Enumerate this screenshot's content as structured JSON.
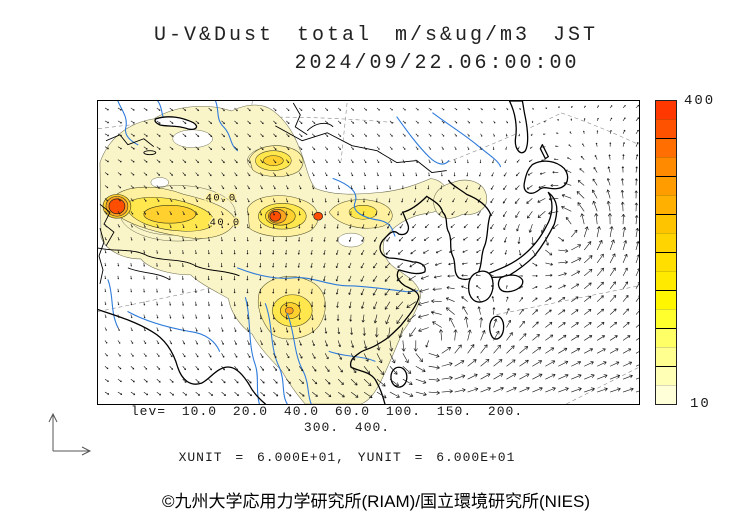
{
  "title": {
    "line1": "U-V&Dust total m/s&ug/m3 JST",
    "line2": "2024/09/22.06:00:00"
  },
  "colorbar": {
    "top_label": "400",
    "bottom_label": "10",
    "colors_top_to_bottom": [
      "#FF3800",
      "#FF5200",
      "#FF6E00",
      "#FF8A00",
      "#FF9D00",
      "#FFB000",
      "#FFC400",
      "#FFD400",
      "#FFDF00",
      "#FFEA00",
      "#FFF600",
      "#FFFF2E",
      "#FFFF66",
      "#FFFF8F",
      "#FFFFB5",
      "#FFFFD8"
    ]
  },
  "levels_legend": {
    "line1": "lev= 10.0 20.0 40.0 60.0 100. 150. 200.",
    "line2": "300. 400.",
    "units": "XUNIT = 6.000E+01, YUNIT = 6.000E+01"
  },
  "map": {
    "contour_levels": [
      10,
      20,
      40,
      60,
      100,
      150,
      200,
      300,
      400
    ],
    "contour_labels": [
      "40.0",
      "40.0"
    ],
    "fill_colors": {
      "pale": "#FAF5C8",
      "light": "#FFF1A0",
      "yellow": "#FFE74D",
      "gold": "#FFD02E",
      "orange": "#FFA41E",
      "red": "#FF4E00"
    },
    "river_color": "#2E7BDC",
    "coast_color": "#000000",
    "arrow_color": "#1c1c1c",
    "graticule_color": "#888888",
    "wind_grid_step": 13
  },
  "footer": {
    "copyright": "©九州大学応用力学研究所(RIAM)/国立環境研究所(NIES)"
  }
}
